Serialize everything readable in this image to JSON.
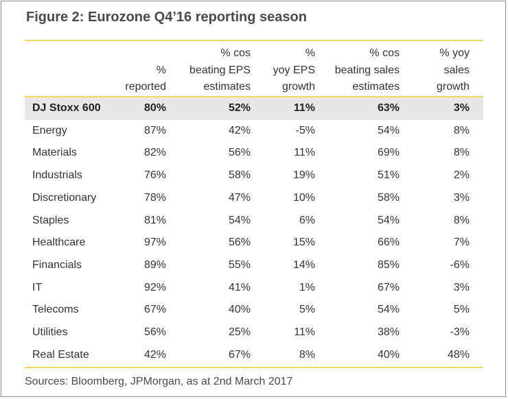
{
  "title": "Figure 2: Eurozone Q4’16 reporting season",
  "headers": [
    [
      "%",
      "reported"
    ],
    [
      "% cos",
      "beating EPS",
      "estimates"
    ],
    [
      "%",
      "yoy EPS",
      "growth"
    ],
    [
      "% cos",
      "beating sales",
      "estimates"
    ],
    [
      "% yoy",
      "sales",
      "growth"
    ]
  ],
  "rows": [
    {
      "name": "DJ Stoxx 600",
      "values": [
        "80%",
        "52%",
        "11%",
        "63%",
        "3%"
      ]
    },
    {
      "name": "Energy",
      "values": [
        "87%",
        "42%",
        "-5%",
        "54%",
        "8%"
      ]
    },
    {
      "name": "Materials",
      "values": [
        "82%",
        "56%",
        "11%",
        "69%",
        "8%"
      ]
    },
    {
      "name": "Industrials",
      "values": [
        "76%",
        "58%",
        "19%",
        "51%",
        "2%"
      ]
    },
    {
      "name": "Discretionary",
      "values": [
        "78%",
        "47%",
        "10%",
        "58%",
        "3%"
      ]
    },
    {
      "name": "Staples",
      "values": [
        "81%",
        "54%",
        "6%",
        "54%",
        "8%"
      ]
    },
    {
      "name": "Healthcare",
      "values": [
        "97%",
        "56%",
        "15%",
        "66%",
        "7%"
      ]
    },
    {
      "name": "Financials",
      "values": [
        "89%",
        "55%",
        "14%",
        "85%",
        "-6%"
      ]
    },
    {
      "name": "IT",
      "values": [
        "92%",
        "41%",
        "1%",
        "67%",
        "3%"
      ]
    },
    {
      "name": "Telecoms",
      "values": [
        "67%",
        "40%",
        "5%",
        "54%",
        "5%"
      ]
    },
    {
      "name": "Utilities",
      "values": [
        "56%",
        "25%",
        "11%",
        "38%",
        "-3%"
      ]
    },
    {
      "name": "Real  Estate",
      "values": [
        "42%",
        "67%",
        "8%",
        "40%",
        "48%"
      ]
    }
  ],
  "sources": "Sources: Bloomberg, JPMorgan, as at 2nd March 2017",
  "colors": {
    "accent_rule": "#f6d65c",
    "row_shade": "#e7e7e7",
    "text": "#333333"
  }
}
